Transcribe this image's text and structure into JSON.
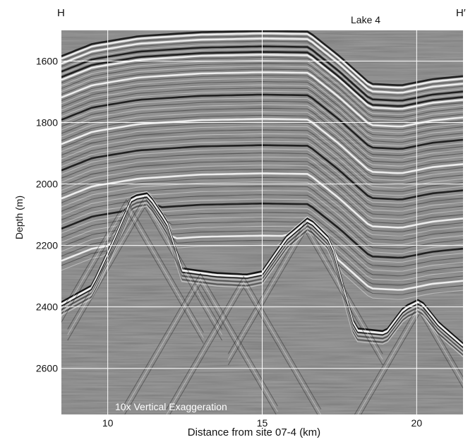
{
  "chart_data": {
    "type": "heatmap",
    "title": "",
    "corner_left": "H",
    "corner_right": "H′",
    "annotation_top": "Lake 4",
    "annotation_bottom": "10x Vertical Exaggeration",
    "xlabel": "Distance from site 07-4 (km)",
    "ylabel": "Depth (m)",
    "xlim": [
      8.5,
      21.5
    ],
    "ylim": [
      1500,
      2750
    ],
    "y_inverted": true,
    "x_ticks": [
      10,
      15,
      20
    ],
    "y_ticks": [
      1600,
      1800,
      2000,
      2200,
      2400,
      2600
    ],
    "grid": true,
    "colormap": "grayscale seismic amplitude",
    "reflector_top": [
      [
        8.5,
        1650
      ],
      [
        9.5,
        1610
      ],
      [
        11,
        1585
      ],
      [
        13,
        1572
      ],
      [
        15,
        1568
      ],
      [
        16.5,
        1570
      ],
      [
        17.5,
        1650
      ],
      [
        18.5,
        1740
      ],
      [
        19.5,
        1745
      ],
      [
        20.5,
        1725
      ],
      [
        21.5,
        1715
      ]
    ],
    "basement_profile": [
      [
        8.5,
        2385
      ],
      [
        9.5,
        2330
      ],
      [
        10.2,
        2180
      ],
      [
        10.8,
        2040
      ],
      [
        11.3,
        2030
      ],
      [
        11.9,
        2120
      ],
      [
        12.4,
        2275
      ],
      [
        13.5,
        2290
      ],
      [
        14.5,
        2295
      ],
      [
        15.0,
        2285
      ],
      [
        15.8,
        2170
      ],
      [
        16.5,
        2110
      ],
      [
        17.2,
        2180
      ],
      [
        18.0,
        2470
      ],
      [
        19.0,
        2480
      ],
      [
        19.6,
        2400
      ],
      [
        20.1,
        2375
      ],
      [
        20.7,
        2450
      ],
      [
        21.5,
        2520
      ]
    ]
  }
}
